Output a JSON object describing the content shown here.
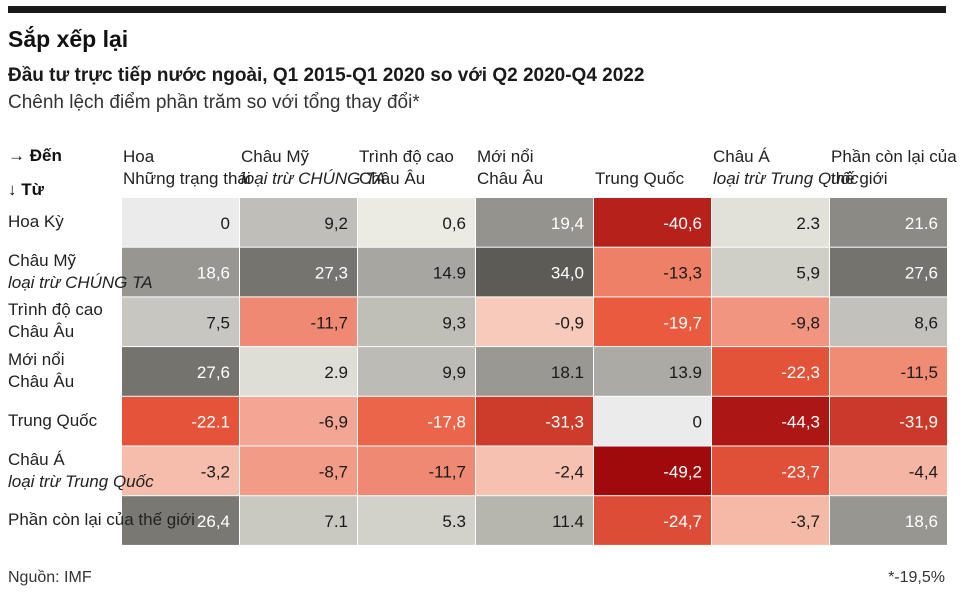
{
  "title": "Sắp xếp lại",
  "subtitle": "Đầu tư trực tiếp nước ngoài, Q1 2015-Q1 2020 so với Q2 2020-Q4 2022",
  "note": "Chênh lệch điểm phần trăm so với tổng thay đổi*",
  "corner": {
    "to": "→ Đến",
    "from": "↓ Từ"
  },
  "columns": [
    {
      "l1": "Hoa",
      "l2": "Những trạng thái",
      "l2_italic": false
    },
    {
      "l1": "Châu Mỹ",
      "l2": "loại trừ CHÚNG TA",
      "l2_italic": true
    },
    {
      "l1": "Trình độ cao",
      "l2": "Châu Âu",
      "l2_italic": false
    },
    {
      "l1": "Mới nổi",
      "l2": "Châu Âu",
      "l2_italic": false
    },
    {
      "l1": "",
      "l2": "Trung Quốc",
      "l2_italic": false
    },
    {
      "l1": "Châu Á",
      "l2": "loại trừ Trung Quốc",
      "l2_italic": true
    },
    {
      "l1": "Phần còn lại của",
      "l2": "thế giới",
      "l2_italic": false
    }
  ],
  "rows": [
    {
      "l1": "Hoa Kỳ",
      "l2": "",
      "l2_italic": false
    },
    {
      "l1": "Châu Mỹ",
      "l2": "loại trừ CHÚNG TA",
      "l2_italic": true
    },
    {
      "l1": "Trình độ cao",
      "l2": "Châu Âu",
      "l2_italic": false
    },
    {
      "l1": "Mới nổi",
      "l2": "Châu Âu",
      "l2_italic": false
    },
    {
      "l1": "Trung Quốc",
      "l2": "",
      "l2_italic": false
    },
    {
      "l1": "Châu Á",
      "l2": "loại trừ Trung Quốc",
      "l2_italic": true
    },
    {
      "l1": "Phần còn lại của thế giới",
      "l2": "",
      "l2_italic": false
    }
  ],
  "chart_data": {
    "type": "heatmap",
    "labels": [
      [
        "0",
        "9,2",
        "0,6",
        "19,4",
        "-40,6",
        "2.3",
        "21.6"
      ],
      [
        "18,6",
        "27,3",
        "14.9",
        "34,0",
        "-13,3",
        "5,9",
        "27,6"
      ],
      [
        "7,5",
        "-11,7",
        "9,3",
        "-0,9",
        "-19,7",
        "-9,8",
        "8,6"
      ],
      [
        "27,6",
        "2.9",
        "9,9",
        "18.1",
        "13.9",
        "-22,3",
        "-11,5"
      ],
      [
        "-22.1",
        "-6,9",
        "-17,8",
        "-31,3",
        "0",
        "-44,3",
        "-31,9"
      ],
      [
        "-3,2",
        "-8,7",
        "-11,7",
        "-2,4",
        "-49,2",
        "-23,7",
        "-4,4"
      ],
      [
        "26,4",
        "7.1",
        "5.3",
        "11.4",
        "-24,7",
        "-3,7",
        "18,6"
      ]
    ],
    "values": [
      [
        0,
        9.2,
        0.6,
        19.4,
        -40.6,
        2.3,
        21.6
      ],
      [
        18.6,
        27.3,
        14.9,
        34.0,
        -13.3,
        5.9,
        27.6
      ],
      [
        7.5,
        -11.7,
        9.3,
        -0.9,
        -19.7,
        -9.8,
        8.6
      ],
      [
        27.6,
        2.9,
        9.9,
        18.1,
        13.9,
        -22.3,
        -11.5
      ],
      [
        -22.1,
        -6.9,
        -17.8,
        -31.3,
        0,
        -44.3,
        -31.9
      ],
      [
        -3.2,
        -8.7,
        -11.7,
        -2.4,
        -49.2,
        -23.7,
        -4.4
      ],
      [
        26.4,
        7.1,
        5.3,
        11.4,
        -24.7,
        -3.7,
        18.6
      ]
    ],
    "colors": {
      "neutral": "#ebebeb",
      "positive_light": "#f0efe8",
      "positive_dark": "#5c5b56",
      "negative_light": "#f8cfc1",
      "negative_mid": "#ea5a3e",
      "negative_dark": "#a00a0d"
    }
  },
  "source": "Nguồn: IMF",
  "footnote": "*-19,5%"
}
